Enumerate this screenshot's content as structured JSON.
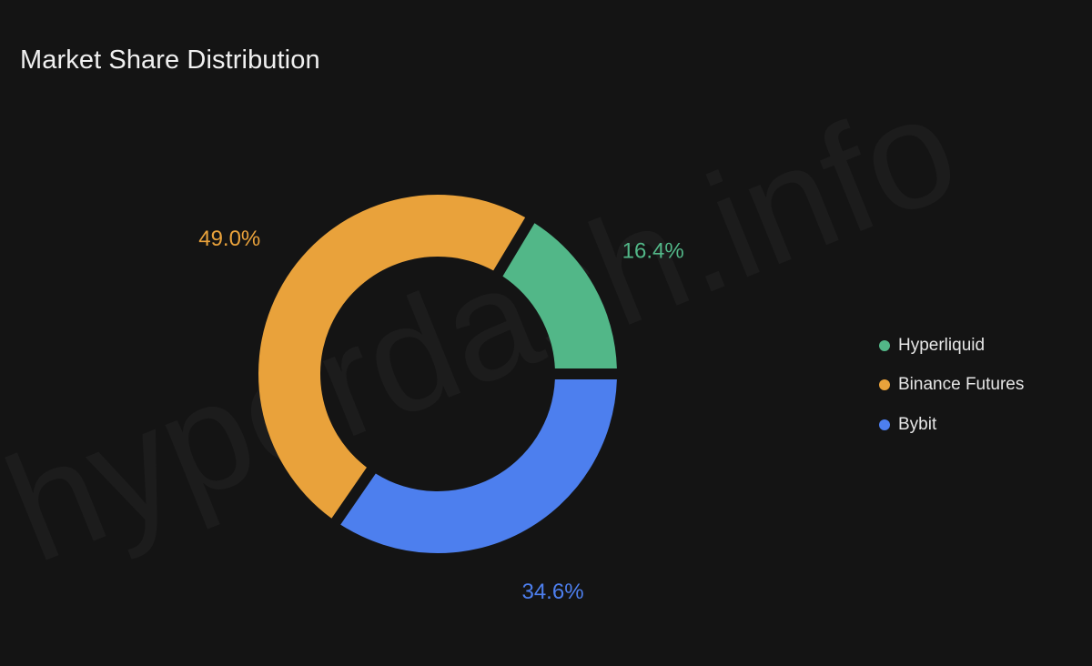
{
  "title": "Market Share Distribution",
  "watermark": "hyperdash.info",
  "chart_data": {
    "type": "pie",
    "donut": true,
    "title": "Market Share Distribution",
    "categories": [
      "Hyperliquid",
      "Binance Futures",
      "Bybit"
    ],
    "values": [
      16.4,
      49.0,
      34.6
    ],
    "labels": [
      "16.4%",
      "49.0%",
      "34.6%"
    ],
    "colors": [
      "#52b788",
      "#e9a23b",
      "#4d7fee"
    ],
    "legend_position": "right"
  }
}
